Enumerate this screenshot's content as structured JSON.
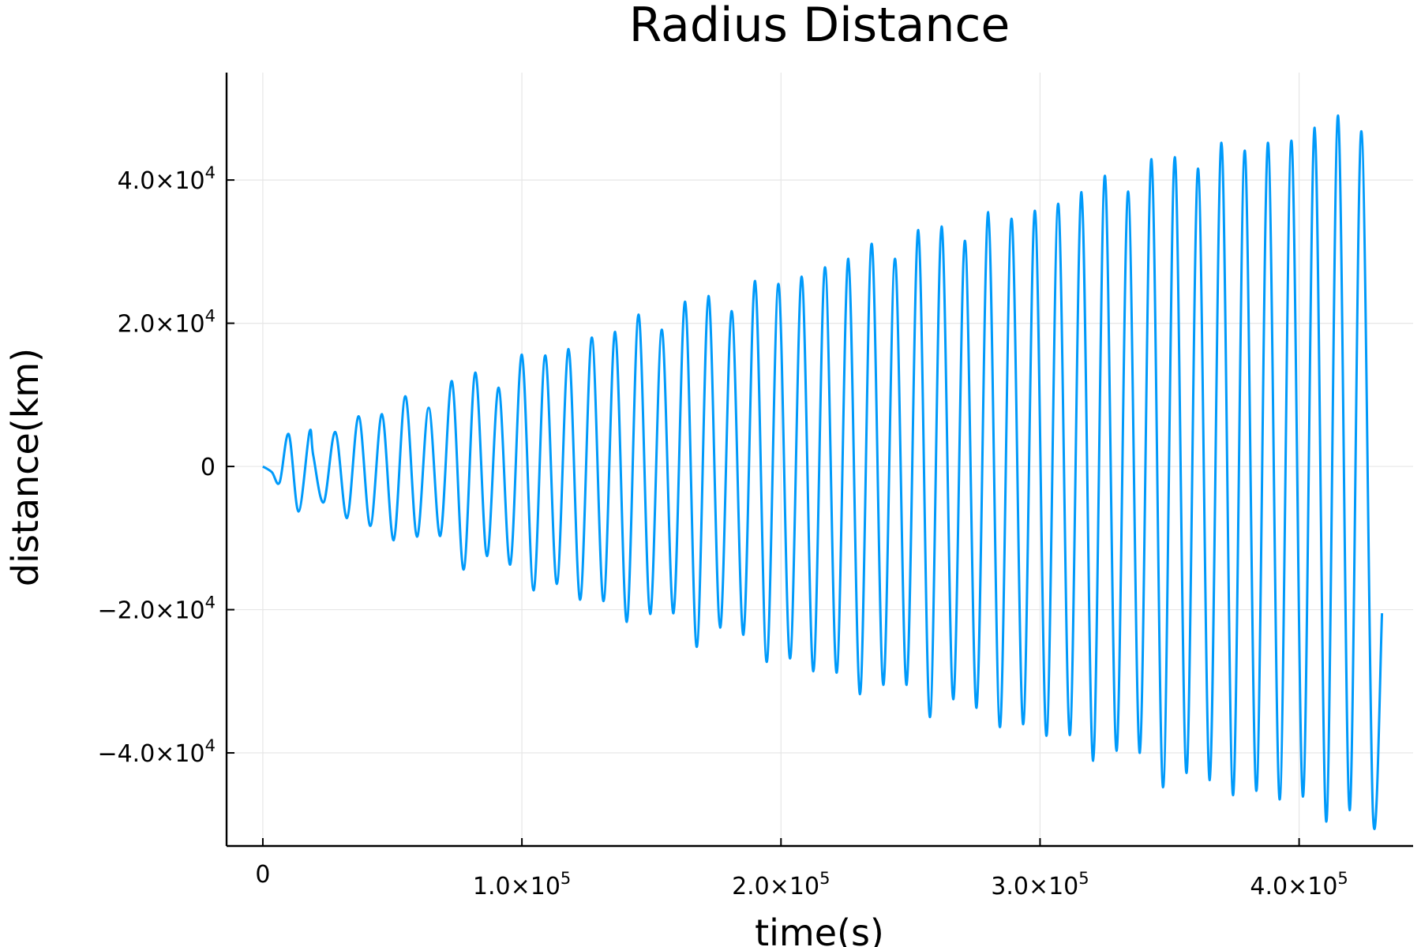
{
  "chart_data": {
    "type": "line",
    "title": "Radius Distance",
    "xlabel": "time(s)",
    "ylabel": "distance(km)",
    "xlim": [
      -14000,
      444000
    ],
    "ylim": [
      -53000,
      55000
    ],
    "grid": true,
    "legend": "none",
    "xticks": [
      {
        "value": 0,
        "mantissa": "0",
        "exp": ""
      },
      {
        "value": 100000,
        "mantissa": "1.0×10",
        "exp": "5"
      },
      {
        "value": 200000,
        "mantissa": "2.0×10",
        "exp": "5"
      },
      {
        "value": 300000,
        "mantissa": "3.0×10",
        "exp": "5"
      },
      {
        "value": 400000,
        "mantissa": "4.0×10",
        "exp": "5"
      }
    ],
    "yticks": [
      {
        "value": 40000,
        "mantissa": "4.0×10",
        "exp": "4"
      },
      {
        "value": 20000,
        "mantissa": "2.0×10",
        "exp": "4"
      },
      {
        "value": 0,
        "mantissa": "0",
        "exp": ""
      },
      {
        "value": -20000,
        "mantissa": "−2.0×10",
        "exp": "4"
      },
      {
        "value": -40000,
        "mantissa": "−4.0×10",
        "exp": "4"
      }
    ],
    "series": [
      {
        "color": "#009AFA",
        "x": [
          0,
          3500,
          6500,
          10000,
          13800,
          18000,
          19500,
          23500,
          28000,
          32500,
          37000,
          41500,
          46000,
          50500,
          55000,
          59500,
          64000,
          68500,
          73000,
          77500,
          82000,
          86500,
          91000,
          95500,
          100000,
          104500,
          109000,
          113500,
          118000,
          122500,
          127000,
          131500,
          136000,
          140500,
          145000,
          149500,
          154000,
          158500,
          163000,
          167500,
          172000,
          176500,
          181000,
          185500,
          190000,
          194500,
          199000,
          203500,
          208000,
          212500,
          217000,
          221500,
          226000,
          230500,
          235000,
          239500,
          244000,
          248500,
          253000,
          257500,
          262000,
          266500,
          271000,
          275500,
          280000,
          284500,
          289000,
          293500,
          298000,
          302500,
          307000,
          311500,
          316000,
          320500,
          325000,
          329500,
          334000,
          338500,
          343000,
          347500,
          352000,
          356500,
          361000,
          365500,
          370000,
          374500,
          379000,
          383500,
          388000,
          392500,
          397000,
          401500,
          406000,
          410500,
          415000,
          419500,
          424000,
          428500,
          432000
        ],
        "y": [
          0,
          -800,
          -2200,
          4500,
          -6300,
          4800,
          1500,
          -5000,
          4800,
          -7200,
          7000,
          -8300,
          7300,
          -10300,
          9800,
          -9800,
          8200,
          -9700,
          11900,
          -14400,
          13100,
          -12500,
          11000,
          -13700,
          15600,
          -17300,
          15500,
          -16400,
          16400,
          -18600,
          18000,
          -18800,
          18800,
          -21700,
          21200,
          -20600,
          19100,
          -20500,
          23000,
          -25200,
          23800,
          -22500,
          21700,
          -23500,
          25900,
          -27300,
          25500,
          -26800,
          26500,
          -28600,
          27800,
          -28800,
          29000,
          -31800,
          31100,
          -30500,
          29000,
          -30500,
          33000,
          -35000,
          33500,
          -32500,
          31500,
          -33700,
          35500,
          -36400,
          34600,
          -36000,
          35700,
          -37600,
          36700,
          -37500,
          38300,
          -41100,
          40600,
          -39700,
          38400,
          -40000,
          42900,
          -44800,
          43200,
          -42800,
          41600,
          -43800,
          45200,
          -45900,
          44100,
          -45300,
          45200,
          -46500,
          45500,
          -46100,
          47300,
          -49600,
          49000,
          -48000,
          46800,
          -48400,
          -20500
        ]
      }
    ]
  }
}
